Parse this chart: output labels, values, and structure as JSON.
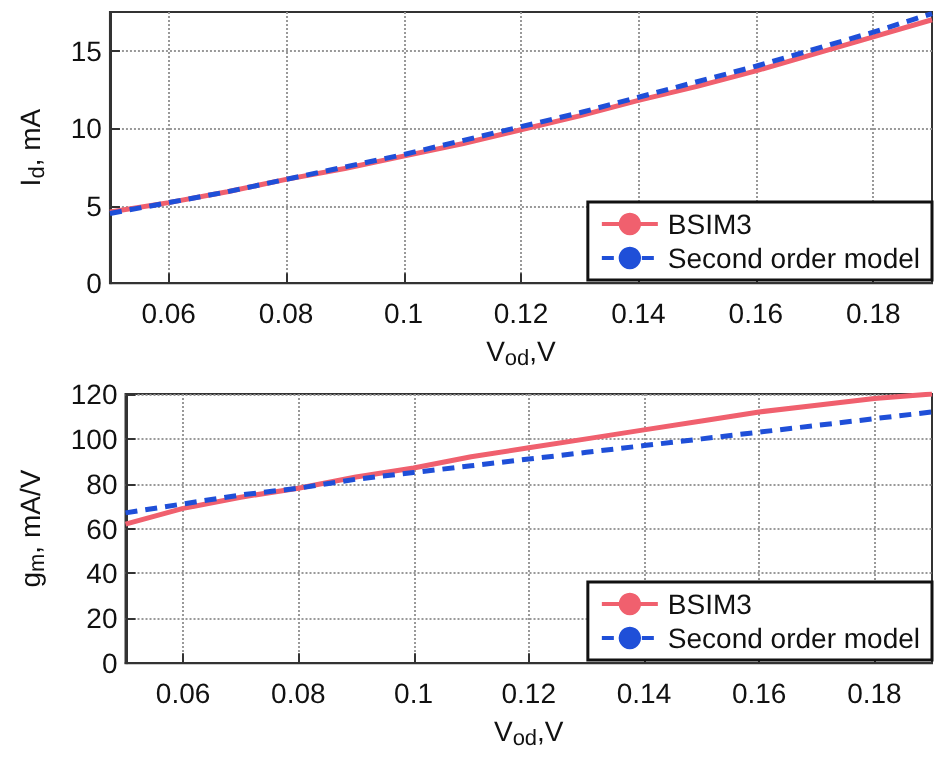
{
  "chart_data": [
    {
      "type": "line",
      "xlabel": "V$_{od}$,V",
      "ylabel": "I$_{d}$, mA",
      "x": [
        0.05,
        0.06,
        0.07,
        0.08,
        0.09,
        0.1,
        0.11,
        0.12,
        0.13,
        0.14,
        0.15,
        0.16,
        0.17,
        0.18,
        0.19
      ],
      "series": [
        {
          "name": "BSIM3",
          "color": "#f0606e",
          "line_style": "solid",
          "values": [
            4.6,
            5.2,
            5.9,
            6.7,
            7.4,
            8.2,
            9.0,
            9.9,
            10.8,
            11.8,
            12.7,
            13.7,
            14.8,
            15.9,
            17.0
          ]
        },
        {
          "name": "Second order model",
          "color": "#1f4fd8",
          "line_style": "dashed",
          "values": [
            4.5,
            5.2,
            5.9,
            6.7,
            7.5,
            8.3,
            9.2,
            10.1,
            11.0,
            12.0,
            13.0,
            14.0,
            15.1,
            16.2,
            17.4
          ]
        }
      ],
      "xlim": [
        0.05,
        0.19
      ],
      "xticks": [
        0.06,
        0.08,
        0.1,
        0.12,
        0.14,
        0.16,
        0.18
      ],
      "ylim": [
        0,
        17.5
      ],
      "yticks": [
        0,
        5,
        10,
        15
      ],
      "grid": true,
      "legend": "bottom right",
      "marker": "none"
    },
    {
      "type": "line",
      "xlabel": "V$_{od}$,V",
      "ylabel": "g$_{m}$, mA/V",
      "x": [
        0.05,
        0.06,
        0.07,
        0.08,
        0.09,
        0.1,
        0.11,
        0.12,
        0.13,
        0.14,
        0.15,
        0.16,
        0.17,
        0.18,
        0.19
      ],
      "series": [
        {
          "name": "BSIM3",
          "color": "#f0606e",
          "line_style": "solid",
          "values": [
            62,
            69,
            74,
            78,
            83,
            87,
            92,
            96,
            100,
            104,
            108,
            112,
            115,
            118,
            120
          ]
        },
        {
          "name": "Second order model",
          "color": "#1f4fd8",
          "line_style": "dashed",
          "values": [
            67,
            71,
            75,
            78,
            82,
            85,
            88,
            91,
            94,
            97,
            100,
            103,
            106,
            109,
            112
          ]
        }
      ],
      "xlim": [
        0.05,
        0.19
      ],
      "xticks": [
        0.06,
        0.08,
        0.1,
        0.12,
        0.14,
        0.16,
        0.18
      ],
      "ylim": [
        0,
        120
      ],
      "yticks": [
        0,
        20,
        40,
        60,
        80,
        100,
        120
      ],
      "grid": true,
      "legend": "bottom right",
      "marker": "none"
    }
  ]
}
